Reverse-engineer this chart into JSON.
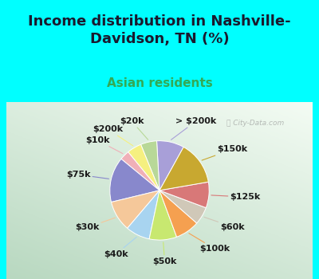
{
  "title": "Income distribution in Nashville-\nDavidson, TN (%)",
  "subtitle": "Asian residents",
  "watermark": "ⓘ City-Data.com",
  "background_top": "#00FFFF",
  "labels": [
    "> $200k",
    "$20k",
    "$200k",
    "$10k",
    "$75k",
    "$30k",
    "$40k",
    "$50k",
    "$100k",
    "$60k",
    "$125k",
    "$150k"
  ],
  "values": [
    8.5,
    5.0,
    4.5,
    3.0,
    14.0,
    9.5,
    7.5,
    8.5,
    7.5,
    5.5,
    8.0,
    13.5
  ],
  "colors": [
    "#a89fd8",
    "#b8d898",
    "#f5f080",
    "#f0b0b8",
    "#8888cc",
    "#f5c89a",
    "#a8d4f0",
    "#c8e870",
    "#f5a050",
    "#d0c8b8",
    "#d87878",
    "#c8a830"
  ],
  "title_color": "#1a1a2e",
  "subtitle_color": "#33aa55",
  "label_color": "#1a1a1a",
  "title_fontsize": 13,
  "subtitle_fontsize": 11,
  "label_fontsize": 8.0,
  "startangle": 61
}
